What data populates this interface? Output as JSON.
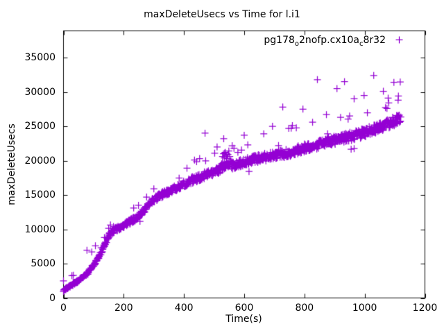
{
  "chart_data": {
    "type": "scatter",
    "title": "maxDeleteUsecs vs Time for l.i1",
    "xlabel": "Time(s)",
    "ylabel": "maxDeleteUsecs",
    "xlim": [
      0,
      1200
    ],
    "ylim": [
      0,
      38900
    ],
    "xticks": [
      0,
      200,
      400,
      600,
      800,
      1000,
      1200
    ],
    "yticks": [
      0,
      5000,
      10000,
      15000,
      20000,
      25000,
      30000,
      35000
    ],
    "grid": false,
    "tick_style": "inward-mirrored",
    "legend_position": "top-right-inside",
    "background": "#ffffff",
    "border_color": "#000000",
    "series": [
      {
        "name": "pg178_o2nofp.cx10a_c8r32",
        "label_parts": [
          {
            "text": "pg178"
          },
          {
            "text": "o",
            "subscript": true
          },
          {
            "text": "2nofp.cx10a"
          },
          {
            "text": "c",
            "subscript": true
          },
          {
            "text": "8r32"
          }
        ],
        "color": "#9400D3",
        "marker": "plus",
        "marker_size_px": 10,
        "sample_interval_s": 1,
        "t_range": [
          0,
          1120
        ],
        "band_median_anchors": [
          [
            0,
            1100
          ],
          [
            25,
            1800
          ],
          [
            50,
            2500
          ],
          [
            75,
            3400
          ],
          [
            100,
            4800
          ],
          [
            115,
            5800
          ],
          [
            130,
            7000
          ],
          [
            145,
            8600
          ],
          [
            155,
            9400
          ],
          [
            170,
            9900
          ],
          [
            185,
            10200
          ],
          [
            205,
            10700
          ],
          [
            225,
            11200
          ],
          [
            251,
            12000
          ],
          [
            270,
            12800
          ],
          [
            297,
            14200
          ],
          [
            320,
            14900
          ],
          [
            343,
            15300
          ],
          [
            371,
            15900
          ],
          [
            400,
            16600
          ],
          [
            435,
            17300
          ],
          [
            470,
            17900
          ],
          [
            505,
            18350
          ],
          [
            528,
            19100
          ],
          [
            548,
            19600
          ],
          [
            562,
            19300
          ],
          [
            580,
            19500
          ],
          [
            604,
            19900
          ],
          [
            643,
            20300
          ],
          [
            680,
            20600
          ],
          [
            712,
            20900
          ],
          [
            744,
            21100
          ],
          [
            781,
            21600
          ],
          [
            820,
            22100
          ],
          [
            873,
            22650
          ],
          [
            919,
            23200
          ],
          [
            965,
            23650
          ],
          [
            1009,
            24200
          ],
          [
            1057,
            25000
          ],
          [
            1090,
            25600
          ],
          [
            1115,
            26100
          ],
          [
            1120,
            26300
          ]
        ],
        "band_noise": {
          "seed": 7,
          "base": 120,
          "proportional": 0.022,
          "stray_up_probability": 0.015,
          "stray_up_factor_min": 1.05,
          "stray_up_factor_spread": 0.12,
          "stray_down_probability": 0.004,
          "stray_down_factor": 0.92
        },
        "outliers": [
          [
            0,
            2500
          ],
          [
            28,
            3250
          ],
          [
            33,
            3300
          ],
          [
            78,
            6950
          ],
          [
            94,
            6700
          ],
          [
            106,
            7600
          ],
          [
            136,
            8800
          ],
          [
            150,
            10150
          ],
          [
            166,
            10400
          ],
          [
            233,
            13100
          ],
          [
            249,
            13500
          ],
          [
            300,
            15900
          ],
          [
            410,
            18900
          ],
          [
            442,
            19850
          ],
          [
            452,
            20300
          ],
          [
            470,
            24000
          ],
          [
            510,
            22000
          ],
          [
            532,
            23200
          ],
          [
            566,
            21800
          ],
          [
            600,
            23700
          ],
          [
            612,
            22300
          ],
          [
            665,
            23900
          ],
          [
            694,
            25000
          ],
          [
            728,
            27800
          ],
          [
            748,
            24700
          ],
          [
            760,
            25100
          ],
          [
            795,
            27500
          ],
          [
            827,
            25600
          ],
          [
            843,
            31800
          ],
          [
            873,
            26700
          ],
          [
            908,
            30500
          ],
          [
            920,
            26300
          ],
          [
            933,
            31500
          ],
          [
            950,
            26500
          ],
          [
            965,
            29000
          ],
          [
            998,
            29500
          ],
          [
            1030,
            32400
          ],
          [
            1062,
            30100
          ],
          [
            1080,
            28400
          ],
          [
            1097,
            31400
          ],
          [
            1111,
            28800
          ],
          [
            1118,
            31450
          ]
        ],
        "cluster_bump": [
          [
            528,
            20600
          ],
          [
            531,
            21000
          ],
          [
            534,
            20400
          ],
          [
            537,
            21200
          ],
          [
            540,
            20800
          ],
          [
            543,
            20300
          ],
          [
            546,
            20900
          ],
          [
            549,
            21400
          ],
          [
            552,
            20600
          ],
          [
            535,
            21100
          ]
        ]
      }
    ]
  }
}
